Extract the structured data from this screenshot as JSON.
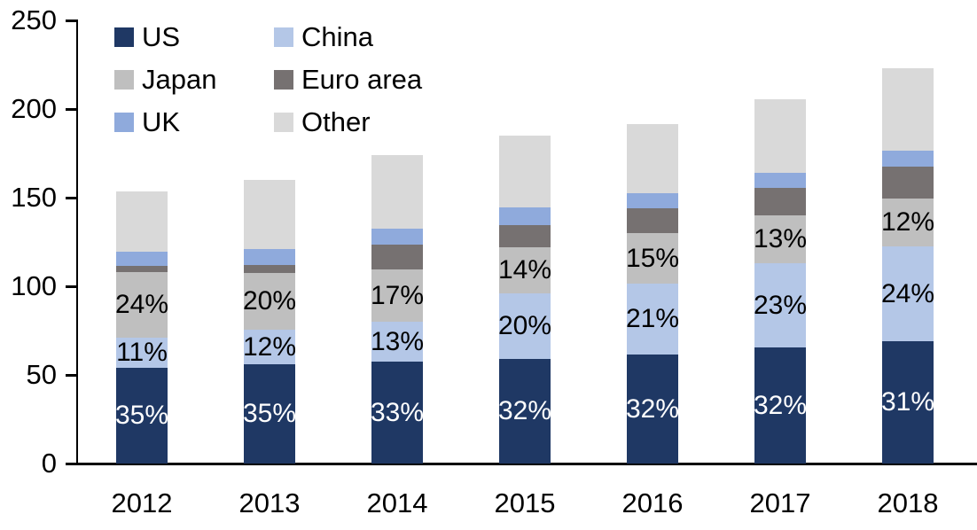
{
  "chart_data": {
    "type": "bar",
    "subtype": "stacked-column",
    "title": "",
    "categories": [
      "2012",
      "2013",
      "2014",
      "2015",
      "2016",
      "2017",
      "2018"
    ],
    "series": [
      {
        "name": "US",
        "color": "#1F3864",
        "values": [
          54,
          56,
          57.5,
          59,
          61.5,
          65.5,
          69
        ],
        "data_labels": [
          "35%",
          "35%",
          "33%",
          "32%",
          "32%",
          "32%",
          "31%"
        ],
        "label_color": "#FFFFFF"
      },
      {
        "name": "China",
        "color": "#B4C7E7",
        "values": [
          17,
          19.5,
          22.5,
          37,
          40,
          47.5,
          53.5
        ],
        "data_labels": [
          "11%",
          "12%",
          "13%",
          "20%",
          "21%",
          "23%",
          "24%"
        ],
        "label_color": "#000000"
      },
      {
        "name": "Japan",
        "color": "#BFBFBF",
        "values": [
          37,
          32,
          29.5,
          26,
          28.5,
          27,
          27
        ],
        "data_labels": [
          "24%",
          "20%",
          "17%",
          "14%",
          "15%",
          "13%",
          "12%"
        ],
        "label_color": "#000000"
      },
      {
        "name": "Euro area",
        "color": "#767171",
        "values": [
          3.5,
          4.5,
          14,
          12.5,
          14,
          15.5,
          18
        ],
        "data_labels": null,
        "label_color": null
      },
      {
        "name": "UK",
        "color": "#8FAADC",
        "values": [
          8,
          9,
          9,
          10,
          8.5,
          8.5,
          9
        ],
        "data_labels": null,
        "label_color": null
      },
      {
        "name": "Other",
        "color": "#D9D9D9",
        "values": [
          34,
          39,
          41.5,
          40.5,
          39,
          41.5,
          46.5
        ],
        "data_labels": null,
        "label_color": null
      }
    ],
    "totals": [
      153.5,
      160,
      174,
      185,
      191.5,
      205.5,
      223
    ],
    "y_axis": {
      "min": 0,
      "max": 250,
      "tick_step": 50,
      "tick_labels": [
        "0",
        "50",
        "100",
        "150",
        "200",
        "250"
      ]
    },
    "x_axis": {
      "tick_labels": [
        "2012",
        "2013",
        "2014",
        "2015",
        "2016",
        "2017",
        "2018"
      ]
    },
    "legend": {
      "position": "top-left",
      "columns": 2,
      "items": [
        {
          "label": "US",
          "color": "#1F3864"
        },
        {
          "label": "China",
          "color": "#B4C7E7"
        },
        {
          "label": "Japan",
          "color": "#BFBFBF"
        },
        {
          "label": "Euro area",
          "color": "#767171"
        },
        {
          "label": "UK",
          "color": "#8FAADC"
        },
        {
          "label": "Other",
          "color": "#D9D9D9"
        }
      ]
    },
    "grid": false,
    "axis_color": "#000000",
    "background_color": "#FFFFFF"
  }
}
